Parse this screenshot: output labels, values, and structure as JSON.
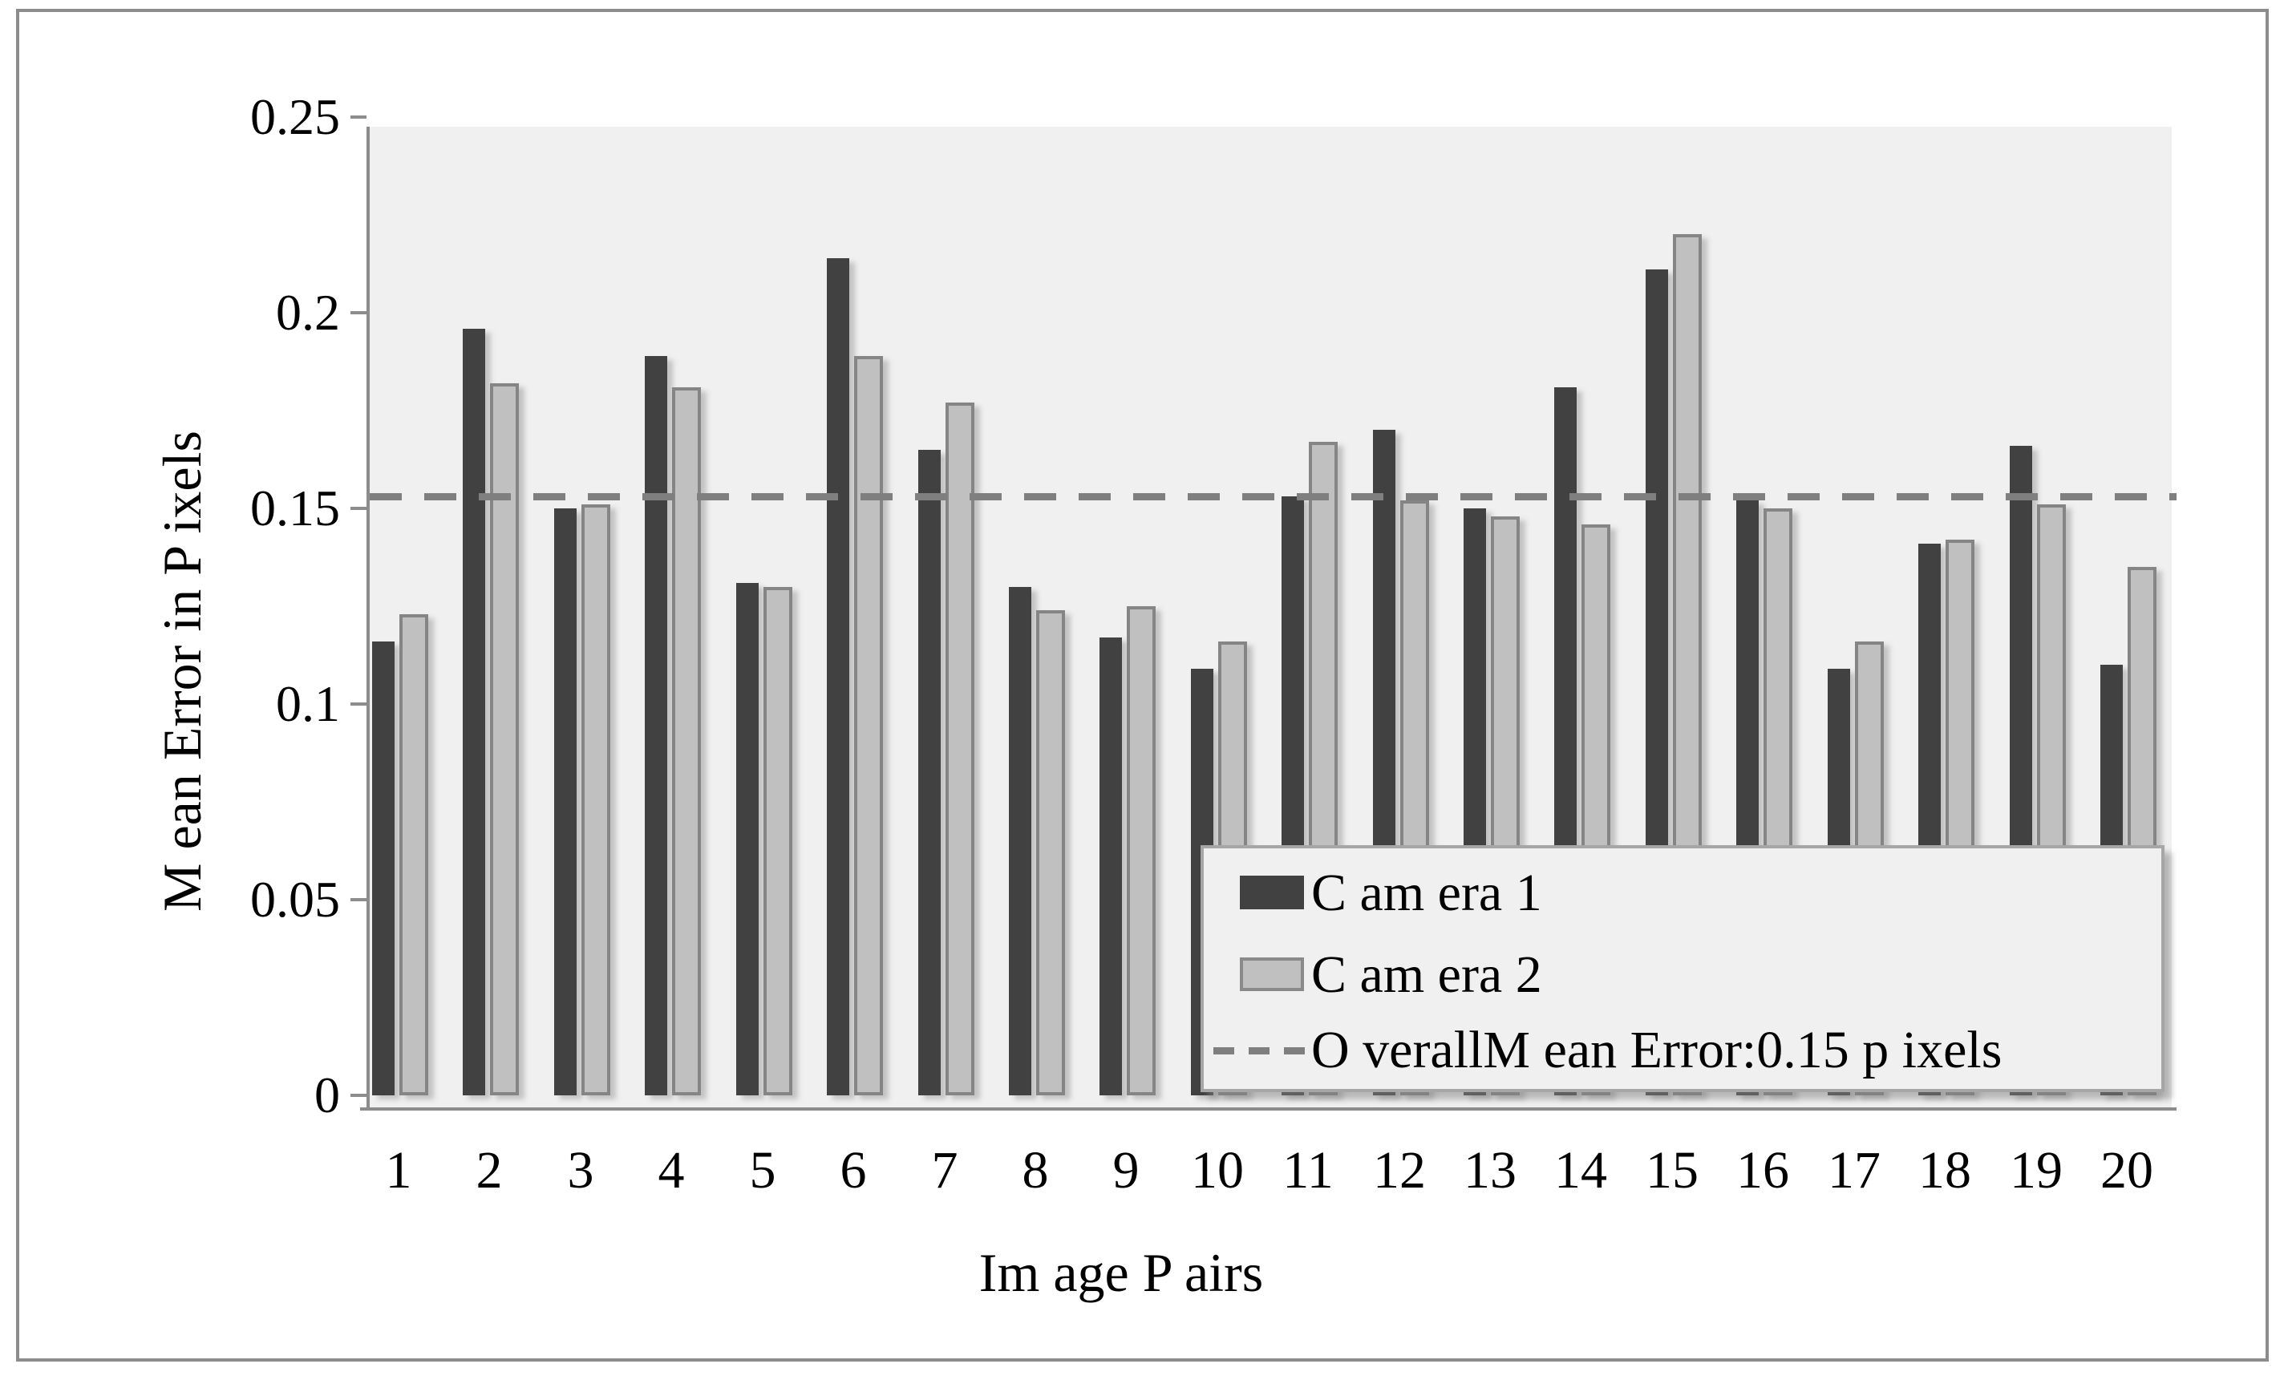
{
  "colors": {
    "camera1_bar": "#414141",
    "camera2_bar": "#c0c0c0",
    "camera2_border": "#858585",
    "axis_gray": "#8c8c8c",
    "dashed_line": "#7f7f7f",
    "plot_background": "#f0f0f1",
    "legend_border": "#a6a6a6"
  },
  "legend": {
    "camera1_label": "C am era 1",
    "camera2_label": "C am era 2",
    "mean_line_label": "O verallM ean Error:0.15 p ixels"
  },
  "chart_data": {
    "type": "bar",
    "title": "",
    "xlabel": "Im age P airs",
    "ylabel": "M ean Error in P ixels",
    "categories": [
      "1",
      "2",
      "3",
      "4",
      "5",
      "6",
      "7",
      "8",
      "9",
      "10",
      "11",
      "12",
      "13",
      "14",
      "15",
      "16",
      "17",
      "18",
      "19",
      "20"
    ],
    "series": [
      {
        "name": "Camera 1",
        "values": [
          0.116,
          0.196,
          0.15,
          0.189,
          0.131,
          0.214,
          0.165,
          0.13,
          0.117,
          0.109,
          0.153,
          0.17,
          0.15,
          0.181,
          0.211,
          0.152,
          0.109,
          0.141,
          0.166,
          0.11
        ]
      },
      {
        "name": "Camera 2",
        "values": [
          0.123,
          0.182,
          0.151,
          0.181,
          0.13,
          0.189,
          0.177,
          0.124,
          0.125,
          0.116,
          0.167,
          0.152,
          0.148,
          0.146,
          0.22,
          0.15,
          0.116,
          0.142,
          0.151,
          0.135
        ]
      }
    ],
    "overall_mean_line_value": 0.153,
    "overall_mean_label_value": "0.15",
    "ylim": [
      0,
      0.25
    ],
    "ytick_values": [
      0,
      0.05,
      0.1,
      0.15,
      0.2,
      0.25
    ],
    "ytick_labels": [
      "0",
      "0.05",
      "0.1",
      "0.15",
      "0.2",
      "0.25"
    ],
    "grid": false,
    "legend_position": "inside lower right"
  }
}
